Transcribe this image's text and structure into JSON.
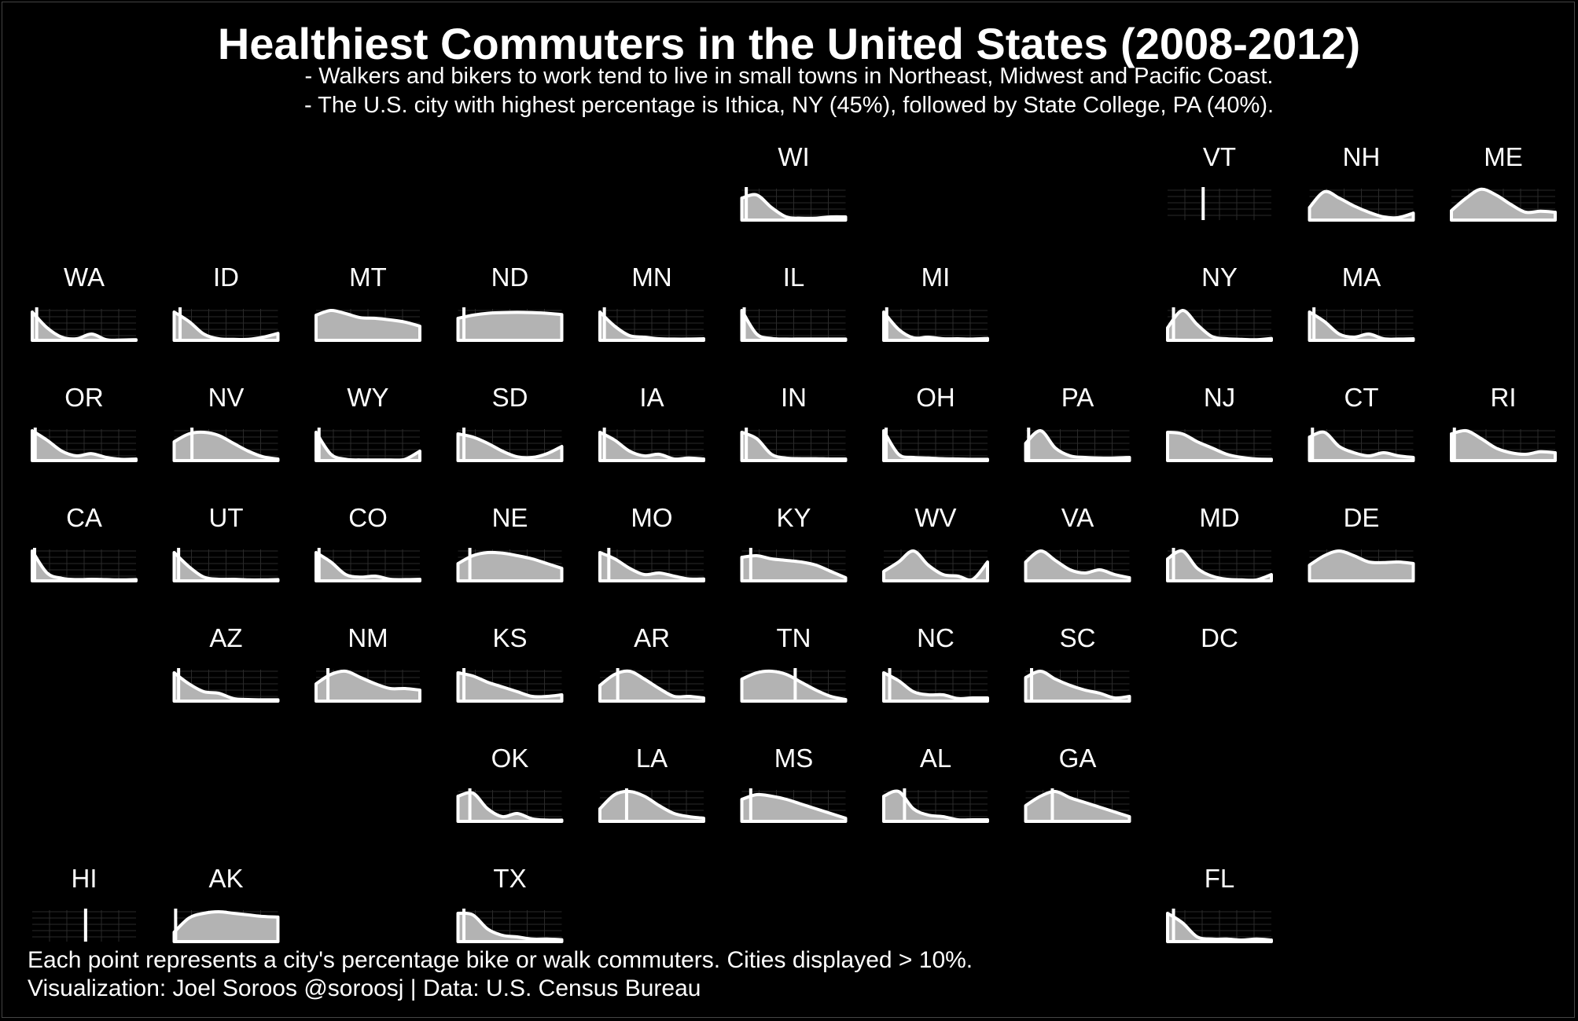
{
  "title": "Healthiest Commuters in the United States (2008-2012)",
  "subtitle_lines": [
    "- Walkers and bikers to work tend to live in small towns in Northeast, Midwest and Pacific Coast.",
    "- The U.S. city with highest percentage is Ithica, NY (45%), followed by State College, PA (40%)."
  ],
  "footnotes": [
    "Each point represents a city's percentage bike or walk commuters. Cities displayed > 10%.",
    "Visualization: Joel Soroos @soroosj  |  Data: U.S. Census Bureau"
  ],
  "colors": {
    "background": "#000000",
    "fill": "#b3b3b3",
    "stroke": "#ffffff",
    "grid": "#2a2a2a"
  },
  "chart_data": {
    "type": "area",
    "layout": "small-multiples tile grid map of U.S. states",
    "x_range": [
      10,
      45
    ],
    "x_units": "percent of commuters who bike or walk",
    "y_units": "relative density (normalized 0-1)",
    "x": [
      10,
      15,
      20,
      25,
      30,
      35,
      40,
      45
    ],
    "states": [
      {
        "abbr": "WI",
        "row": 0,
        "col": 5,
        "density": [
          0.7,
          0.8,
          0.4,
          0.1,
          0.06,
          0.06,
          0.1,
          0.1
        ],
        "median": 11.5
      },
      {
        "abbr": "VT",
        "row": 0,
        "col": 8,
        "density": null,
        "median": 22
      },
      {
        "abbr": "NH",
        "row": 0,
        "col": 9,
        "density": [
          0.4,
          0.9,
          0.7,
          0.45,
          0.25,
          0.1,
          0.08,
          0.22
        ],
        "median": null
      },
      {
        "abbr": "ME",
        "row": 0,
        "col": 10,
        "density": [
          0.3,
          0.7,
          0.98,
          0.8,
          0.5,
          0.25,
          0.28,
          0.25
        ],
        "median": null
      },
      {
        "abbr": "WA",
        "row": 1,
        "col": 0,
        "density": [
          0.9,
          0.4,
          0.1,
          0.05,
          0.2,
          0.02,
          0.01,
          0.02
        ],
        "median": 11.5
      },
      {
        "abbr": "ID",
        "row": 1,
        "col": 1,
        "density": [
          0.9,
          0.6,
          0.2,
          0.05,
          0.03,
          0.03,
          0.1,
          0.22
        ],
        "median": 12
      },
      {
        "abbr": "MT",
        "row": 1,
        "col": 2,
        "density": [
          0.8,
          0.95,
          0.85,
          0.72,
          0.7,
          0.65,
          0.58,
          0.45
        ],
        "median": null
      },
      {
        "abbr": "ND",
        "row": 1,
        "col": 3,
        "density": [
          0.7,
          0.8,
          0.86,
          0.88,
          0.89,
          0.88,
          0.86,
          0.82
        ],
        "median": 12
      },
      {
        "abbr": "MN",
        "row": 1,
        "col": 4,
        "density": [
          0.9,
          0.45,
          0.15,
          0.1,
          0.05,
          0.04,
          0.04,
          0.05
        ],
        "median": 11.5
      },
      {
        "abbr": "IL",
        "row": 1,
        "col": 5,
        "density": [
          0.95,
          0.2,
          0.06,
          0.04,
          0.04,
          0.04,
          0.04,
          0.04
        ],
        "median": 10.8
      },
      {
        "abbr": "MI",
        "row": 1,
        "col": 6,
        "density": [
          0.9,
          0.35,
          0.08,
          0.1,
          0.05,
          0.05,
          0.04,
          0.06
        ],
        "median": 11
      },
      {
        "abbr": "NY",
        "row": 1,
        "col": 8,
        "density": [
          0.4,
          0.95,
          0.5,
          0.12,
          0.05,
          0.03,
          0.02,
          0.06
        ],
        "median": 12
      },
      {
        "abbr": "MA",
        "row": 1,
        "col": 9,
        "density": [
          0.9,
          0.6,
          0.2,
          0.1,
          0.2,
          0.05,
          0.04,
          0.05
        ],
        "median": 11.5
      },
      {
        "abbr": "OR",
        "row": 2,
        "col": 0,
        "density": [
          0.95,
          0.65,
          0.3,
          0.15,
          0.22,
          0.1,
          0.04,
          0.05
        ],
        "median": 11
      },
      {
        "abbr": "NV",
        "row": 2,
        "col": 1,
        "density": [
          0.6,
          0.85,
          0.9,
          0.8,
          0.55,
          0.3,
          0.12,
          0.05
        ],
        "median": 16
      },
      {
        "abbr": "WY",
        "row": 2,
        "col": 2,
        "density": [
          0.9,
          0.2,
          0.04,
          0.02,
          0.02,
          0.02,
          0.04,
          0.3
        ],
        "median": 11
      },
      {
        "abbr": "SD",
        "row": 2,
        "col": 3,
        "density": [
          0.85,
          0.75,
          0.55,
          0.3,
          0.12,
          0.1,
          0.22,
          0.45
        ],
        "median": 12
      },
      {
        "abbr": "IA",
        "row": 2,
        "col": 4,
        "density": [
          0.9,
          0.65,
          0.3,
          0.15,
          0.2,
          0.05,
          0.08,
          0.05
        ],
        "median": 11.5
      },
      {
        "abbr": "IN",
        "row": 2,
        "col": 5,
        "density": [
          0.9,
          0.7,
          0.2,
          0.08,
          0.06,
          0.06,
          0.05,
          0.05
        ],
        "median": 11.5
      },
      {
        "abbr": "OH",
        "row": 2,
        "col": 6,
        "density": [
          0.95,
          0.2,
          0.1,
          0.08,
          0.06,
          0.05,
          0.04,
          0.04
        ],
        "median": 10.8
      },
      {
        "abbr": "PA",
        "row": 2,
        "col": 7,
        "density": [
          0.55,
          0.95,
          0.4,
          0.15,
          0.1,
          0.08,
          0.08,
          0.1
        ],
        "median": 11
      },
      {
        "abbr": "NJ",
        "row": 2,
        "col": 8,
        "density": [
          0.9,
          0.85,
          0.6,
          0.4,
          0.2,
          0.1,
          0.05,
          0.04
        ],
        "median": null
      },
      {
        "abbr": "CT",
        "row": 2,
        "col": 9,
        "density": [
          0.75,
          0.9,
          0.45,
          0.25,
          0.15,
          0.25,
          0.15,
          0.1
        ],
        "median": 11
      },
      {
        "abbr": "RI",
        "row": 2,
        "col": 10,
        "density": [
          0.85,
          0.95,
          0.7,
          0.4,
          0.25,
          0.2,
          0.28,
          0.25
        ],
        "median": 11
      },
      {
        "abbr": "CA",
        "row": 3,
        "col": 0,
        "density": [
          0.95,
          0.25,
          0.08,
          0.04,
          0.05,
          0.04,
          0.03,
          0.04
        ],
        "median": 10.8
      },
      {
        "abbr": "UT",
        "row": 3,
        "col": 1,
        "density": [
          0.9,
          0.45,
          0.12,
          0.05,
          0.05,
          0.03,
          0.03,
          0.04
        ],
        "median": 11.5
      },
      {
        "abbr": "CO",
        "row": 3,
        "col": 2,
        "density": [
          0.9,
          0.6,
          0.2,
          0.12,
          0.15,
          0.05,
          0.04,
          0.05
        ],
        "median": 11
      },
      {
        "abbr": "NE",
        "row": 3,
        "col": 3,
        "density": [
          0.55,
          0.8,
          0.9,
          0.88,
          0.8,
          0.7,
          0.55,
          0.4
        ],
        "median": 14
      },
      {
        "abbr": "MO",
        "row": 3,
        "col": 4,
        "density": [
          0.9,
          0.7,
          0.4,
          0.2,
          0.25,
          0.15,
          0.06,
          0.06
        ],
        "median": 13
      },
      {
        "abbr": "KY",
        "row": 3,
        "col": 5,
        "density": [
          0.75,
          0.8,
          0.7,
          0.65,
          0.6,
          0.5,
          0.3,
          0.1
        ],
        "median": 13
      },
      {
        "abbr": "WV",
        "row": 3,
        "col": 6,
        "density": [
          0.3,
          0.6,
          0.95,
          0.5,
          0.2,
          0.15,
          0.05,
          0.6
        ],
        "median": null
      },
      {
        "abbr": "VA",
        "row": 3,
        "col": 7,
        "density": [
          0.6,
          0.95,
          0.65,
          0.35,
          0.25,
          0.35,
          0.2,
          0.1
        ],
        "median": null
      },
      {
        "abbr": "MD",
        "row": 3,
        "col": 8,
        "density": [
          0.7,
          0.95,
          0.4,
          0.15,
          0.05,
          0.03,
          0.03,
          0.2
        ],
        "median": 12
      },
      {
        "abbr": "DE",
        "row": 3,
        "col": 9,
        "density": [
          0.5,
          0.8,
          0.95,
          0.8,
          0.6,
          0.58,
          0.6,
          0.55
        ],
        "median": null
      },
      {
        "abbr": "AZ",
        "row": 4,
        "col": 1,
        "density": [
          0.9,
          0.55,
          0.3,
          0.25,
          0.08,
          0.05,
          0.04,
          0.04
        ],
        "median": 11.5
      },
      {
        "abbr": "NM",
        "row": 4,
        "col": 2,
        "density": [
          0.55,
          0.85,
          0.95,
          0.75,
          0.55,
          0.4,
          0.4,
          0.35
        ],
        "median": 14
      },
      {
        "abbr": "KS",
        "row": 4,
        "col": 3,
        "density": [
          0.9,
          0.8,
          0.6,
          0.45,
          0.3,
          0.15,
          0.15,
          0.2
        ],
        "median": 12
      },
      {
        "abbr": "AR",
        "row": 4,
        "col": 4,
        "density": [
          0.5,
          0.85,
          0.95,
          0.7,
          0.4,
          0.15,
          0.15,
          0.1
        ],
        "median": 16
      },
      {
        "abbr": "TN",
        "row": 4,
        "col": 5,
        "density": [
          0.7,
          0.9,
          0.95,
          0.85,
          0.6,
          0.35,
          0.15,
          0.05
        ],
        "median": 28
      },
      {
        "abbr": "NC",
        "row": 4,
        "col": 6,
        "density": [
          0.9,
          0.65,
          0.3,
          0.2,
          0.2,
          0.08,
          0.1,
          0.1
        ],
        "median": 12
      },
      {
        "abbr": "SC",
        "row": 4,
        "col": 7,
        "density": [
          0.75,
          0.95,
          0.7,
          0.5,
          0.35,
          0.25,
          0.1,
          0.15
        ],
        "median": 12
      },
      {
        "abbr": "OK",
        "row": 5,
        "col": 3,
        "density": [
          0.8,
          0.9,
          0.4,
          0.15,
          0.25,
          0.08,
          0.04,
          0.04
        ],
        "median": 14
      },
      {
        "abbr": "LA",
        "row": 5,
        "col": 4,
        "density": [
          0.4,
          0.85,
          0.95,
          0.8,
          0.5,
          0.25,
          0.15,
          0.1
        ],
        "median": 19
      },
      {
        "abbr": "MS",
        "row": 5,
        "col": 5,
        "density": [
          0.7,
          0.85,
          0.8,
          0.7,
          0.55,
          0.4,
          0.25,
          0.1
        ],
        "median": 13
      },
      {
        "abbr": "AL",
        "row": 5,
        "col": 6,
        "density": [
          0.8,
          0.95,
          0.4,
          0.2,
          0.15,
          0.05,
          0.05,
          0.05
        ],
        "median": 17
      },
      {
        "abbr": "GA",
        "row": 5,
        "col": 7,
        "density": [
          0.5,
          0.8,
          0.95,
          0.75,
          0.6,
          0.45,
          0.3,
          0.15
        ],
        "median": 19
      },
      {
        "abbr": "HI",
        "row": 6,
        "col": 0,
        "density": null,
        "median": 28
      },
      {
        "abbr": "AK",
        "row": 6,
        "col": 1,
        "density": [
          0.3,
          0.75,
          0.9,
          0.95,
          0.9,
          0.85,
          0.8,
          0.78
        ],
        "median": 10.5
      },
      {
        "abbr": "TX",
        "row": 6,
        "col": 3,
        "density": [
          0.9,
          0.85,
          0.4,
          0.2,
          0.15,
          0.08,
          0.08,
          0.06
        ],
        "median": 12
      },
      {
        "abbr": "FL",
        "row": 6,
        "col": 8,
        "density": [
          0.9,
          0.6,
          0.15,
          0.08,
          0.08,
          0.05,
          0.08,
          0.05
        ],
        "median": 12
      },
      {
        "abbr": "DC",
        "row": 4,
        "col": 8,
        "density": null,
        "median": null
      }
    ]
  }
}
